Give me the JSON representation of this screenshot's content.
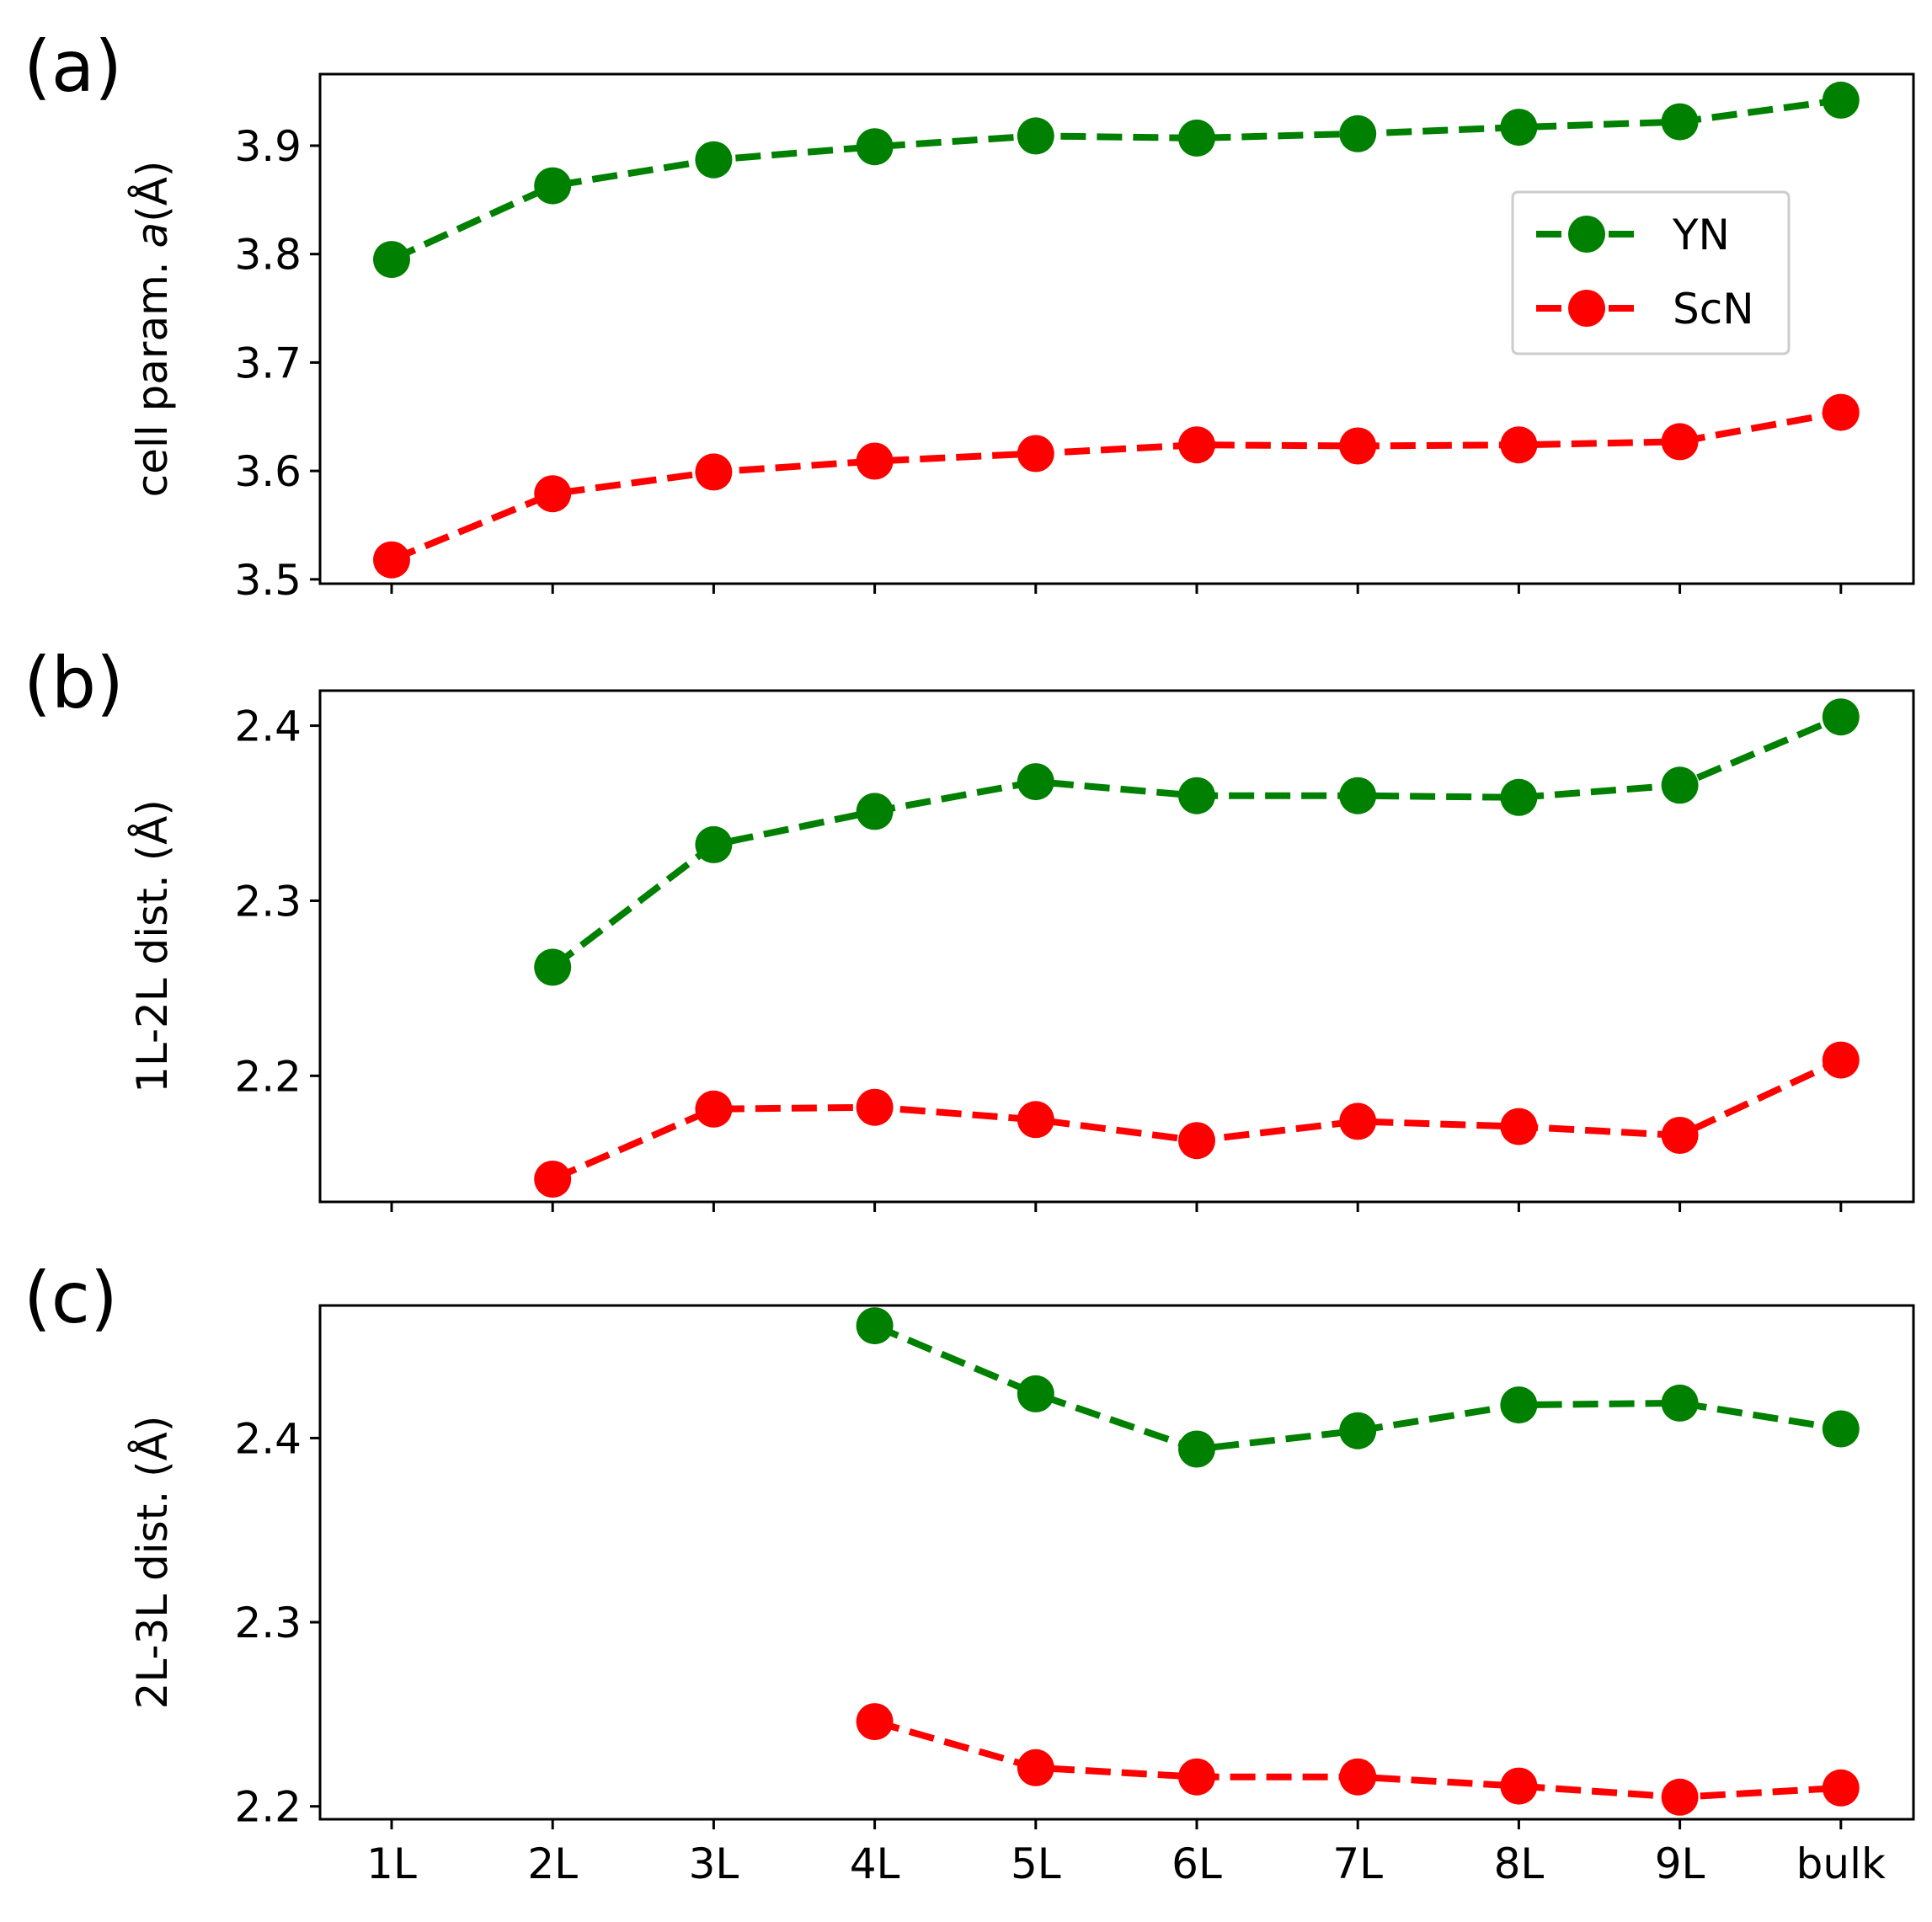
{
  "chart_data": [
    {
      "panel_label": "(a)",
      "type": "line",
      "ylabel_prefix": "cell param. ",
      "ylabel_italic": "a",
      "ylabel_suffix": "(Å)",
      "ylim": [
        3.496,
        3.966
      ],
      "yticks": [
        3.5,
        3.6,
        3.7,
        3.8,
        3.9
      ],
      "ytick_labels": [
        "3.5",
        "3.6",
        "3.7",
        "3.8",
        "3.9"
      ],
      "categories": [
        "1L",
        "2L",
        "3L",
        "4L",
        "5L",
        "6L",
        "7L",
        "8L",
        "9L",
        "bulk"
      ],
      "series": [
        {
          "name": "YN",
          "color": "#008000",
          "values": [
            3.795,
            3.863,
            3.887,
            3.899,
            3.909,
            3.907,
            3.911,
            3.917,
            3.922,
            3.942
          ]
        },
        {
          "name": "ScN",
          "color": "#ff0000",
          "values": [
            3.518,
            3.579,
            3.599,
            3.609,
            3.616,
            3.624,
            3.623,
            3.624,
            3.627,
            3.654
          ]
        }
      ],
      "legend": {
        "position": "right",
        "entries": [
          "YN",
          "ScN"
        ]
      }
    },
    {
      "panel_label": "(b)",
      "type": "line",
      "ylabel": "1L-2L dist. (Å)",
      "ylim": [
        2.128,
        2.42
      ],
      "yticks": [
        2.2,
        2.3,
        2.4
      ],
      "ytick_labels": [
        "2.2",
        "2.3",
        "2.4"
      ],
      "categories": [
        "1L",
        "2L",
        "3L",
        "4L",
        "5L",
        "6L",
        "7L",
        "8L",
        "9L",
        "bulk"
      ],
      "series": [
        {
          "name": "YN",
          "color": "#008000",
          "values": [
            null,
            2.262,
            2.332,
            2.351,
            2.368,
            2.36,
            2.36,
            2.359,
            2.366,
            2.405
          ]
        },
        {
          "name": "ScN",
          "color": "#ff0000",
          "values": [
            null,
            2.141,
            2.181,
            2.182,
            2.175,
            2.163,
            2.174,
            2.171,
            2.166,
            2.209
          ]
        }
      ]
    },
    {
      "panel_label": "(c)",
      "type": "line",
      "ylabel": "2L-3L dist. (Å)",
      "ylim": [
        2.193,
        2.472
      ],
      "yticks": [
        2.2,
        2.3,
        2.4
      ],
      "ytick_labels": [
        "2.2",
        "2.3",
        "2.4"
      ],
      "categories": [
        "1L",
        "2L",
        "3L",
        "4L",
        "5L",
        "6L",
        "7L",
        "8L",
        "9L",
        "bulk"
      ],
      "series": [
        {
          "name": "YN",
          "color": "#008000",
          "values": [
            null,
            null,
            null,
            2.461,
            2.424,
            2.394,
            2.404,
            2.418,
            2.419,
            2.405
          ]
        },
        {
          "name": "ScN",
          "color": "#ff0000",
          "values": [
            null,
            null,
            null,
            2.246,
            2.221,
            2.216,
            2.216,
            2.211,
            2.205,
            2.21
          ]
        }
      ]
    }
  ]
}
